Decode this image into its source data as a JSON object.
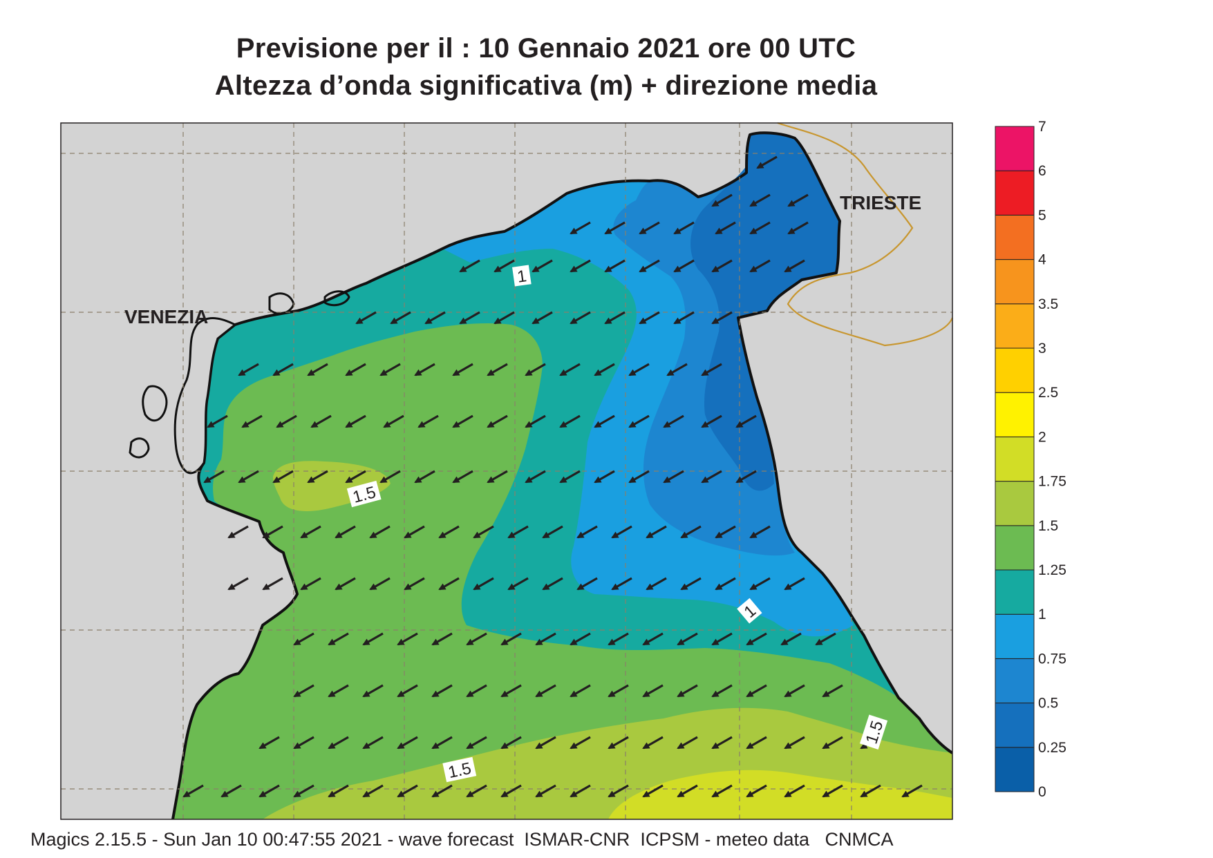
{
  "title_line1": "Previsione per il  :  10  Gennaio  2021   ore 00 UTC",
  "title_line2": "Altezza d’onda significativa (m) + direzione media",
  "places": {
    "venezia": "VENEZIA",
    "trieste": "TRIESTE"
  },
  "contour_labels": [
    "1",
    "1.5",
    "1",
    "1.5",
    "1.5"
  ],
  "legend": {
    "ticks": [
      "0",
      "0.25",
      "0.5",
      "0.75",
      "1",
      "1.25",
      "1.5",
      "1.75",
      "2",
      "2.5",
      "3",
      "3.5",
      "4",
      "5",
      "6",
      "7"
    ],
    "colors": [
      "#0a5fa8",
      "#1570bd",
      "#1d86d0",
      "#1a9fe0",
      "#16aaa0",
      "#6cbb52",
      "#a9c93f",
      "#d2dd26",
      "#fff200",
      "#ffd000",
      "#fbad18",
      "#f7941d",
      "#f36f21",
      "#ed1c24",
      "#ec1466"
    ]
  },
  "wave_direction": "southwest",
  "footer": "Magics 2.15.5 - Sun Jan 10 00:47:55 2021 - wave forecast  ISMAR-CNR  ICPSM - meteo data   CNMCA"
}
